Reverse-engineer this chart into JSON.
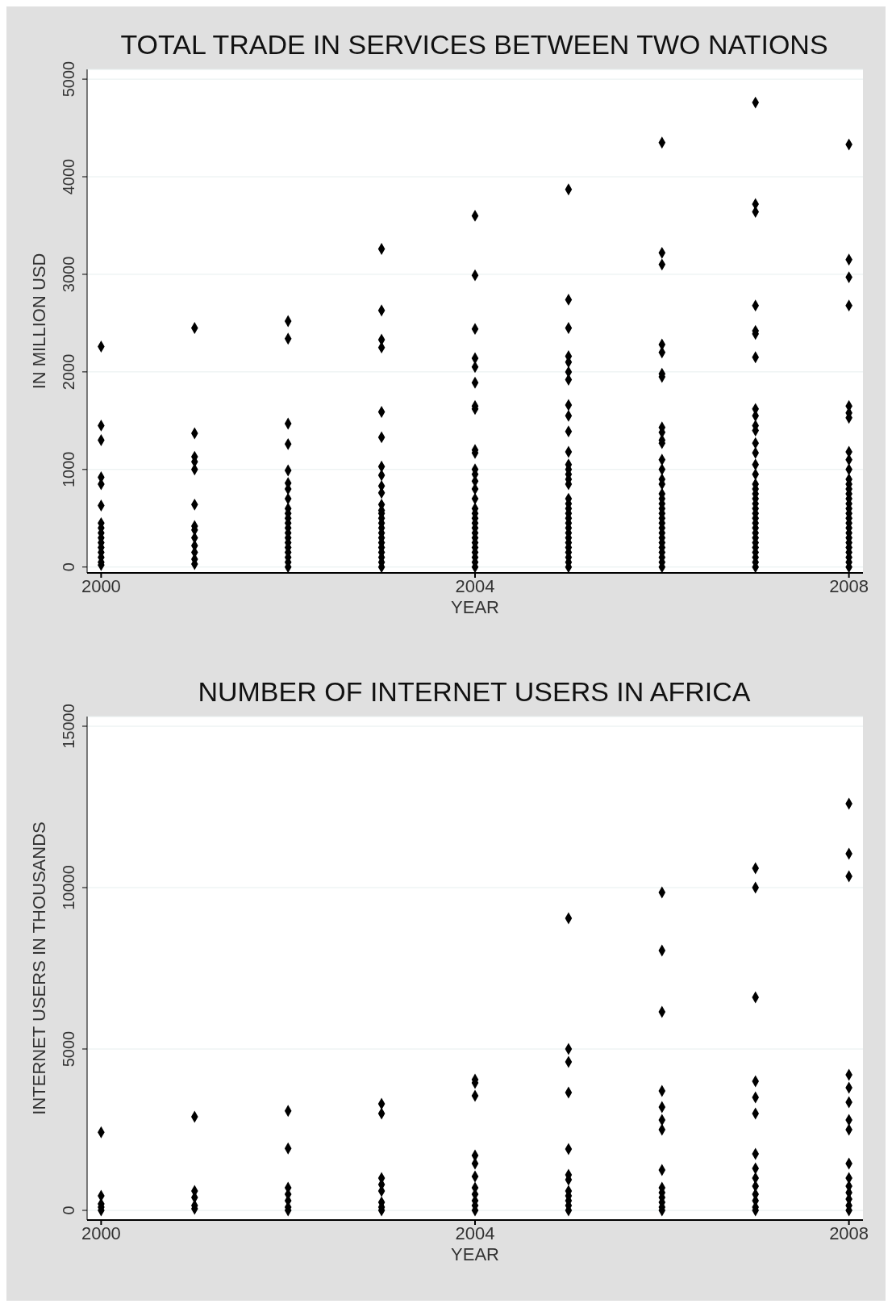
{
  "chart_data": [
    {
      "type": "scatter",
      "title": "TOTAL TRADE IN SERVICES BETWEEN TWO NATIONS",
      "xlabel": "YEAR",
      "ylabel": "IN MILLION USD",
      "color": "#000000",
      "marker": "diamond",
      "grid": "y",
      "xlim": [
        1999.85,
        2008.15
      ],
      "xticks": [
        2000,
        2004,
        2008
      ],
      "ylim": [
        -60,
        5100
      ],
      "yticks": [
        0,
        1000,
        2000,
        3000,
        4000,
        5000
      ],
      "x": [
        2000,
        2000,
        2000,
        2000,
        2000,
        2000,
        2000,
        2000,
        2000,
        2000,
        2000,
        2000,
        2000,
        2000,
        2000,
        2000,
        2001,
        2001,
        2001,
        2001,
        2001,
        2001,
        2001,
        2001,
        2001,
        2001,
        2001,
        2001,
        2001,
        2002,
        2002,
        2002,
        2002,
        2002,
        2002,
        2002,
        2002,
        2002,
        2002,
        2002,
        2002,
        2002,
        2002,
        2002,
        2002,
        2002,
        2002,
        2002,
        2002,
        2002,
        2003,
        2003,
        2003,
        2003,
        2003,
        2003,
        2003,
        2003,
        2003,
        2003,
        2003,
        2003,
        2003,
        2003,
        2003,
        2003,
        2003,
        2003,
        2003,
        2003,
        2003,
        2003,
        2003,
        2003,
        2004,
        2004,
        2004,
        2004,
        2004,
        2004,
        2004,
        2004,
        2004,
        2004,
        2004,
        2004,
        2004,
        2004,
        2004,
        2004,
        2004,
        2004,
        2004,
        2004,
        2004,
        2004,
        2004,
        2004,
        2004,
        2004,
        2004,
        2004,
        2005,
        2005,
        2005,
        2005,
        2005,
        2005,
        2005,
        2005,
        2005,
        2005,
        2005,
        2005,
        2005,
        2005,
        2005,
        2005,
        2005,
        2005,
        2005,
        2005,
        2005,
        2005,
        2005,
        2005,
        2005,
        2005,
        2005,
        2005,
        2005,
        2005,
        2005,
        2006,
        2006,
        2006,
        2006,
        2006,
        2006,
        2006,
        2006,
        2006,
        2006,
        2006,
        2006,
        2006,
        2006,
        2006,
        2006,
        2006,
        2006,
        2006,
        2006,
        2006,
        2006,
        2006,
        2006,
        2006,
        2006,
        2006,
        2006,
        2006,
        2006,
        2006,
        2007,
        2007,
        2007,
        2007,
        2007,
        2007,
        2007,
        2007,
        2007,
        2007,
        2007,
        2007,
        2007,
        2007,
        2007,
        2007,
        2007,
        2007,
        2007,
        2007,
        2007,
        2007,
        2007,
        2007,
        2007,
        2007,
        2007,
        2007,
        2007,
        2007,
        2007,
        2007,
        2007,
        2008,
        2008,
        2008,
        2008,
        2008,
        2008,
        2008,
        2008,
        2008,
        2008,
        2008,
        2008,
        2008,
        2008,
        2008,
        2008,
        2008,
        2008,
        2008,
        2008,
        2008,
        2008,
        2008,
        2008,
        2008,
        2008,
        2008,
        2008,
        2008
      ],
      "values": [
        2260,
        1450,
        1300,
        920,
        850,
        630,
        450,
        400,
        350,
        300,
        250,
        200,
        150,
        100,
        50,
        20,
        2450,
        1370,
        1130,
        1080,
        1000,
        640,
        420,
        380,
        300,
        220,
        150,
        80,
        30,
        2520,
        2340,
        1470,
        1260,
        990,
        860,
        800,
        700,
        600,
        550,
        500,
        450,
        400,
        350,
        300,
        250,
        200,
        150,
        100,
        50,
        0,
        3260,
        2630,
        2330,
        2250,
        1590,
        1330,
        1030,
        940,
        830,
        760,
        640,
        580,
        550,
        500,
        450,
        400,
        350,
        300,
        250,
        200,
        150,
        100,
        50,
        0,
        3600,
        2990,
        2440,
        2140,
        2050,
        1890,
        1650,
        1620,
        1200,
        1170,
        1000,
        950,
        880,
        800,
        700,
        600,
        550,
        500,
        450,
        400,
        350,
        300,
        250,
        200,
        150,
        100,
        50,
        0,
        3870,
        2740,
        2450,
        2160,
        2100,
        2000,
        1920,
        1660,
        1550,
        1390,
        1180,
        1050,
        1000,
        950,
        900,
        850,
        700,
        650,
        600,
        550,
        500,
        450,
        400,
        350,
        300,
        250,
        200,
        150,
        100,
        50,
        0,
        4350,
        3220,
        3100,
        2280,
        2200,
        1980,
        1950,
        1430,
        1380,
        1300,
        1270,
        1100,
        1000,
        900,
        850,
        750,
        700,
        650,
        600,
        550,
        500,
        450,
        400,
        350,
        300,
        250,
        200,
        150,
        100,
        50,
        0,
        4760,
        3720,
        3640,
        2680,
        2420,
        2390,
        2150,
        1620,
        1550,
        1450,
        1400,
        1270,
        1170,
        1050,
        950,
        850,
        800,
        750,
        700,
        650,
        600,
        550,
        500,
        450,
        400,
        350,
        300,
        250,
        200,
        150,
        100,
        50,
        0,
        4330,
        3150,
        2970,
        2680,
        1650,
        1580,
        1530,
        1180,
        1100,
        1000,
        900,
        850,
        800,
        750,
        700,
        650,
        600,
        550,
        500,
        450,
        400,
        350,
        300,
        250,
        200,
        150,
        100,
        50,
        0
      ]
    },
    {
      "type": "scatter",
      "title": "NUMBER OF INTERNET USERS IN AFRICA",
      "xlabel": "YEAR",
      "ylabel": "INTERNET USERS IN THOUSANDS",
      "color": "#000000",
      "marker": "diamond",
      "grid": "y",
      "xlim": [
        1999.85,
        2008.15
      ],
      "xticks": [
        2000,
        2004,
        2008
      ],
      "ylim": [
        -300,
        15300
      ],
      "yticks": [
        0,
        5000,
        10000,
        15000
      ],
      "x": [
        2000,
        2000,
        2000,
        2000,
        2000,
        2001,
        2001,
        2001,
        2001,
        2001,
        2002,
        2002,
        2002,
        2002,
        2002,
        2002,
        2002,
        2003,
        2003,
        2003,
        2003,
        2003,
        2003,
        2003,
        2003,
        2004,
        2004,
        2004,
        2004,
        2004,
        2004,
        2004,
        2004,
        2004,
        2004,
        2004,
        2005,
        2005,
        2005,
        2005,
        2005,
        2005,
        2005,
        2005,
        2005,
        2005,
        2005,
        2005,
        2006,
        2006,
        2006,
        2006,
        2006,
        2006,
        2006,
        2006,
        2006,
        2006,
        2006,
        2006,
        2006,
        2006,
        2007,
        2007,
        2007,
        2007,
        2007,
        2007,
        2007,
        2007,
        2007,
        2007,
        2007,
        2007,
        2007,
        2007,
        2008,
        2008,
        2008,
        2008,
        2008,
        2008,
        2008,
        2008,
        2008,
        2008,
        2008,
        2008,
        2008,
        2008,
        2008
      ],
      "values": [
        2420,
        450,
        200,
        100,
        0,
        2900,
        600,
        400,
        150,
        50,
        3080,
        1920,
        700,
        500,
        300,
        100,
        0,
        3300,
        3000,
        1000,
        800,
        600,
        250,
        100,
        0,
        4050,
        3950,
        3550,
        1700,
        1450,
        1050,
        700,
        500,
        300,
        150,
        0,
        9050,
        5000,
        4600,
        3650,
        1900,
        1100,
        950,
        600,
        450,
        300,
        150,
        0,
        9850,
        8050,
        6150,
        3700,
        3200,
        2800,
        2500,
        1250,
        700,
        550,
        400,
        250,
        100,
        0,
        10600,
        10000,
        6600,
        4000,
        3500,
        3000,
        1750,
        1300,
        1000,
        750,
        500,
        300,
        100,
        0,
        12600,
        11050,
        10350,
        4200,
        3800,
        3350,
        2800,
        2500,
        1450,
        1000,
        750,
        550,
        350,
        150,
        0
      ]
    }
  ]
}
